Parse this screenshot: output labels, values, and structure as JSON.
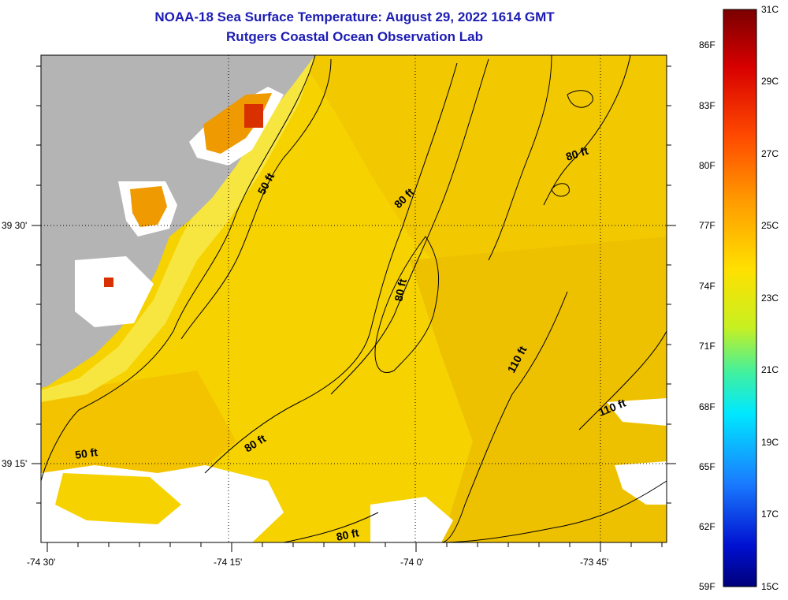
{
  "header": {
    "title": "NOAA-18 Sea Surface Temperature:  August 29, 2022 1614 GMT",
    "subtitle": "Rutgers Coastal Ocean Observation Lab"
  },
  "map": {
    "lon_ticks": [
      "-74 30'",
      "-74 15'",
      "-74 0'",
      "-73 45'"
    ],
    "lat_ticks": [
      "39 30'",
      "39 15'"
    ],
    "contour_labels": [
      "50 ft",
      "50 ft",
      "80 ft",
      "80 ft",
      "80 ft",
      "80 ft",
      "80 ft",
      "110 ft",
      "110 ft"
    ],
    "colors": {
      "land": "#b4b4b4",
      "cloud": "#ffffff",
      "sst_main": "#f6d200",
      "sst_warm": "#ee9a00",
      "sst_hot": "#d93000"
    }
  },
  "colorbar": {
    "celsius_labels": [
      "31C",
      "29C",
      "27C",
      "25C",
      "23C",
      "21C",
      "19C",
      "17C",
      "15C"
    ],
    "fahrenheit_labels": [
      "86F",
      "83F",
      "80F",
      "77F",
      "74F",
      "71F",
      "68F",
      "65F",
      "62F",
      "59F"
    ]
  }
}
